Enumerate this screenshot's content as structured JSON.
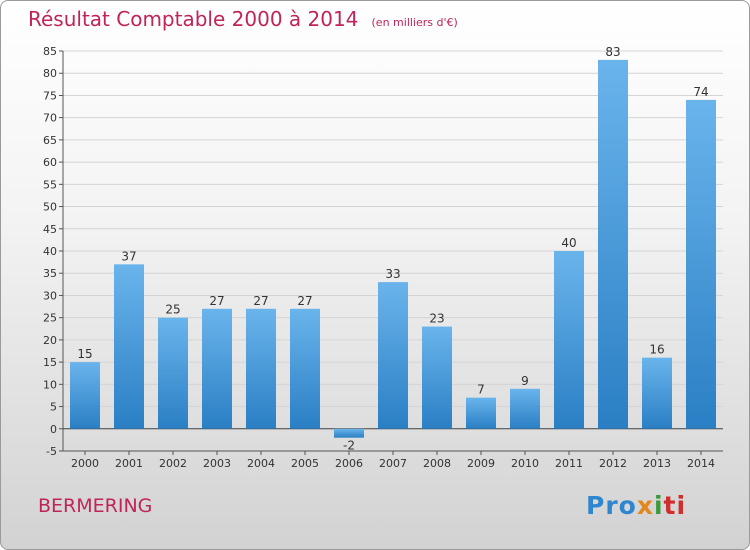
{
  "chart_data": {
    "type": "bar",
    "title": "Résultat Comptable 2000 à 2014",
    "unit_note": "(en milliers d'€)",
    "categories": [
      "2000",
      "2001",
      "2002",
      "2003",
      "2004",
      "2005",
      "2006",
      "2007",
      "2008",
      "2009",
      "2010",
      "2011",
      "2012",
      "2013",
      "2014"
    ],
    "values": [
      15,
      37,
      25,
      27,
      27,
      27,
      -2,
      33,
      23,
      7,
      9,
      40,
      83,
      16,
      74
    ],
    "ylim": [
      -5,
      85
    ],
    "yticks": [
      -5,
      0,
      5,
      10,
      15,
      20,
      25,
      30,
      35,
      40,
      45,
      50,
      55,
      60,
      65,
      70,
      75,
      80,
      85
    ],
    "grid": true,
    "xlabel": "",
    "ylabel": "",
    "bar_color": "#4a9ee0"
  },
  "footer": {
    "commune": "BERMERING",
    "logo": [
      "Pro",
      "x",
      "i",
      "ti"
    ]
  },
  "colors": {
    "title": "#c0245a",
    "bar_top": "#6ab4ec",
    "bar_bottom": "#2a7fc4"
  }
}
